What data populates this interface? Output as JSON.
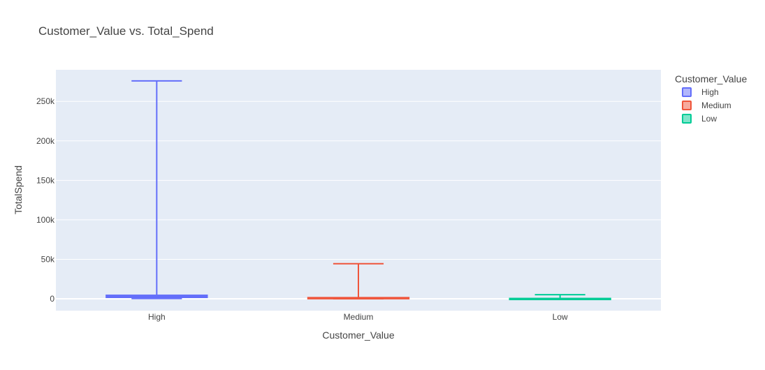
{
  "chart_data": {
    "type": "box",
    "title": "Customer_Value vs. Total_Spend",
    "xlabel": "Customer_Value",
    "ylabel": "TotalSpend",
    "categories": [
      "High",
      "Medium",
      "Low"
    ],
    "ylim": [
      -15000,
      290000
    ],
    "yticks": [
      0,
      50000,
      100000,
      150000,
      200000,
      250000
    ],
    "ytick_labels": [
      "0",
      "50k",
      "100k",
      "150k",
      "200k",
      "250k"
    ],
    "grid": true,
    "legend": {
      "title": "Customer_Value",
      "position": "top-right",
      "entries": [
        "High",
        "Medium",
        "Low"
      ]
    },
    "series": [
      {
        "name": "High",
        "color": "#636efa",
        "box": {
          "lowerfence": 400,
          "q1": 1800,
          "median": 2700,
          "q3": 4500,
          "upperfence": 276000
        }
      },
      {
        "name": "Medium",
        "color": "#ef553b",
        "box": {
          "lowerfence": 150,
          "q1": 700,
          "median": 1050,
          "q3": 1500,
          "upperfence": 44500
        }
      },
      {
        "name": "Low",
        "color": "#00cc96",
        "box": {
          "lowerfence": 20,
          "q1": 150,
          "median": 250,
          "q3": 450,
          "upperfence": 5200
        }
      }
    ]
  }
}
